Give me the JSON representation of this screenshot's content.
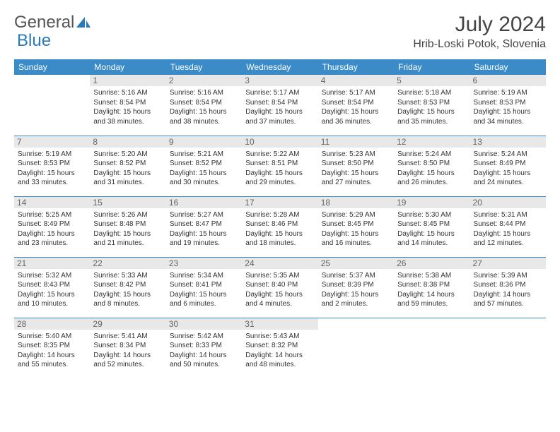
{
  "brand": {
    "text1": "General",
    "text2": "Blue"
  },
  "title": "July 2024",
  "location": "Hrib-Loski Potok, Slovenia",
  "colors": {
    "header_bg": "#3b8bc9",
    "header_text": "#ffffff",
    "daynum_bg": "#e8e8e8",
    "daynum_text": "#666666",
    "border": "#3b8bc9",
    "brand_blue": "#2a7ab8"
  },
  "weekdays": [
    "Sunday",
    "Monday",
    "Tuesday",
    "Wednesday",
    "Thursday",
    "Friday",
    "Saturday"
  ],
  "weeks": [
    [
      null,
      {
        "n": "1",
        "sr": "5:16 AM",
        "ss": "8:54 PM",
        "dl": "15 hours and 38 minutes."
      },
      {
        "n": "2",
        "sr": "5:16 AM",
        "ss": "8:54 PM",
        "dl": "15 hours and 38 minutes."
      },
      {
        "n": "3",
        "sr": "5:17 AM",
        "ss": "8:54 PM",
        "dl": "15 hours and 37 minutes."
      },
      {
        "n": "4",
        "sr": "5:17 AM",
        "ss": "8:54 PM",
        "dl": "15 hours and 36 minutes."
      },
      {
        "n": "5",
        "sr": "5:18 AM",
        "ss": "8:53 PM",
        "dl": "15 hours and 35 minutes."
      },
      {
        "n": "6",
        "sr": "5:19 AM",
        "ss": "8:53 PM",
        "dl": "15 hours and 34 minutes."
      }
    ],
    [
      {
        "n": "7",
        "sr": "5:19 AM",
        "ss": "8:53 PM",
        "dl": "15 hours and 33 minutes."
      },
      {
        "n": "8",
        "sr": "5:20 AM",
        "ss": "8:52 PM",
        "dl": "15 hours and 31 minutes."
      },
      {
        "n": "9",
        "sr": "5:21 AM",
        "ss": "8:52 PM",
        "dl": "15 hours and 30 minutes."
      },
      {
        "n": "10",
        "sr": "5:22 AM",
        "ss": "8:51 PM",
        "dl": "15 hours and 29 minutes."
      },
      {
        "n": "11",
        "sr": "5:23 AM",
        "ss": "8:50 PM",
        "dl": "15 hours and 27 minutes."
      },
      {
        "n": "12",
        "sr": "5:24 AM",
        "ss": "8:50 PM",
        "dl": "15 hours and 26 minutes."
      },
      {
        "n": "13",
        "sr": "5:24 AM",
        "ss": "8:49 PM",
        "dl": "15 hours and 24 minutes."
      }
    ],
    [
      {
        "n": "14",
        "sr": "5:25 AM",
        "ss": "8:49 PM",
        "dl": "15 hours and 23 minutes."
      },
      {
        "n": "15",
        "sr": "5:26 AM",
        "ss": "8:48 PM",
        "dl": "15 hours and 21 minutes."
      },
      {
        "n": "16",
        "sr": "5:27 AM",
        "ss": "8:47 PM",
        "dl": "15 hours and 19 minutes."
      },
      {
        "n": "17",
        "sr": "5:28 AM",
        "ss": "8:46 PM",
        "dl": "15 hours and 18 minutes."
      },
      {
        "n": "18",
        "sr": "5:29 AM",
        "ss": "8:45 PM",
        "dl": "15 hours and 16 minutes."
      },
      {
        "n": "19",
        "sr": "5:30 AM",
        "ss": "8:45 PM",
        "dl": "15 hours and 14 minutes."
      },
      {
        "n": "20",
        "sr": "5:31 AM",
        "ss": "8:44 PM",
        "dl": "15 hours and 12 minutes."
      }
    ],
    [
      {
        "n": "21",
        "sr": "5:32 AM",
        "ss": "8:43 PM",
        "dl": "15 hours and 10 minutes."
      },
      {
        "n": "22",
        "sr": "5:33 AM",
        "ss": "8:42 PM",
        "dl": "15 hours and 8 minutes."
      },
      {
        "n": "23",
        "sr": "5:34 AM",
        "ss": "8:41 PM",
        "dl": "15 hours and 6 minutes."
      },
      {
        "n": "24",
        "sr": "5:35 AM",
        "ss": "8:40 PM",
        "dl": "15 hours and 4 minutes."
      },
      {
        "n": "25",
        "sr": "5:37 AM",
        "ss": "8:39 PM",
        "dl": "15 hours and 2 minutes."
      },
      {
        "n": "26",
        "sr": "5:38 AM",
        "ss": "8:38 PM",
        "dl": "14 hours and 59 minutes."
      },
      {
        "n": "27",
        "sr": "5:39 AM",
        "ss": "8:36 PM",
        "dl": "14 hours and 57 minutes."
      }
    ],
    [
      {
        "n": "28",
        "sr": "5:40 AM",
        "ss": "8:35 PM",
        "dl": "14 hours and 55 minutes."
      },
      {
        "n": "29",
        "sr": "5:41 AM",
        "ss": "8:34 PM",
        "dl": "14 hours and 52 minutes."
      },
      {
        "n": "30",
        "sr": "5:42 AM",
        "ss": "8:33 PM",
        "dl": "14 hours and 50 minutes."
      },
      {
        "n": "31",
        "sr": "5:43 AM",
        "ss": "8:32 PM",
        "dl": "14 hours and 48 minutes."
      },
      null,
      null,
      null
    ]
  ],
  "labels": {
    "sunrise": "Sunrise:",
    "sunset": "Sunset:",
    "daylight": "Daylight:"
  }
}
